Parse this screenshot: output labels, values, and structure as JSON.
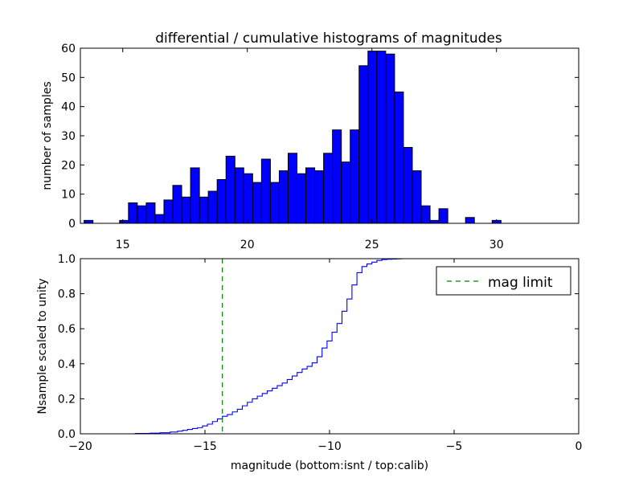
{
  "chart_data": [
    {
      "type": "bar",
      "title": "differential / cumulative histograms of magnitudes",
      "ylabel": "number of samples",
      "xlim": [
        13.3,
        33.3
      ],
      "ylim": [
        0,
        60
      ],
      "xticks": [
        15,
        20,
        25,
        30
      ],
      "yticks": [
        0,
        10,
        20,
        30,
        40,
        50,
        60
      ],
      "bin_width": 0.356,
      "bin_starts": [
        13.45,
        13.806,
        14.162,
        14.518,
        14.874,
        15.23,
        15.586,
        15.942,
        16.298,
        16.654,
        17.01,
        17.366,
        17.722,
        18.078,
        18.434,
        18.79,
        19.146,
        19.502,
        19.858,
        20.214,
        20.57,
        20.926,
        21.282,
        21.638,
        21.994,
        22.35,
        22.706,
        23.062,
        23.418,
        23.774,
        24.13,
        24.486,
        24.842,
        25.198,
        25.554,
        25.91,
        26.266,
        26.622,
        26.978,
        27.334,
        27.69,
        28.046,
        28.402,
        28.758,
        29.114,
        29.47,
        29.826,
        30.182,
        30.538,
        30.894
      ],
      "values": [
        1,
        0,
        0,
        0,
        1,
        7,
        6,
        7,
        3,
        8,
        13,
        9,
        19,
        9,
        11,
        15,
        23,
        19,
        17,
        14,
        22,
        14,
        18,
        24,
        17,
        19,
        18,
        24,
        32,
        21,
        32,
        54,
        59,
        59,
        58,
        45,
        26,
        18,
        6,
        1,
        5,
        0,
        0,
        2,
        0,
        0,
        1,
        0,
        0,
        0
      ]
    },
    {
      "type": "line",
      "step": true,
      "ylabel": "Nsample scaled to unity",
      "xlabel": "magnitude (bottom:isnt / top:calib)",
      "xlim": [
        -20,
        0
      ],
      "ylim": [
        0,
        1.0
      ],
      "xticks": [
        -20,
        -15,
        -10,
        -5,
        0
      ],
      "yticks": [
        0.0,
        0.2,
        0.4,
        0.6,
        0.8,
        1.0
      ],
      "ytick_labels": [
        "0.0",
        "0.2",
        "0.4",
        "0.6",
        "0.8",
        "1.0"
      ],
      "legend": {
        "entries": [
          "mag limit"
        ],
        "placement": "top-right"
      },
      "mag_limit": -14.3,
      "series": [
        {
          "x": [
            -20,
            -17.8,
            -17.2,
            -16.8,
            -16.4,
            -16.1,
            -15.9,
            -15.7,
            -15.5,
            -15.3,
            -15.1,
            -14.9,
            -14.7,
            -14.5,
            -14.3,
            -14.1,
            -13.9,
            -13.7,
            -13.5,
            -13.3,
            -13.1,
            -12.9,
            -12.7,
            -12.5,
            -12.3,
            -12.1,
            -11.9,
            -11.7,
            -11.5,
            -11.3,
            -11.1,
            -10.9,
            -10.7,
            -10.5,
            -10.3,
            -10.1,
            -9.9,
            -9.7,
            -9.5,
            -9.3,
            -9.1,
            -8.9,
            -8.7,
            -8.5,
            -8.3,
            -8.1,
            -7.9,
            -7.7,
            -7.5,
            -7.3,
            -7.1,
            -6.7,
            0
          ],
          "y": [
            0,
            0.002,
            0.004,
            0.006,
            0.01,
            0.015,
            0.02,
            0.025,
            0.03,
            0.035,
            0.045,
            0.055,
            0.07,
            0.085,
            0.1,
            0.11,
            0.125,
            0.14,
            0.16,
            0.18,
            0.2,
            0.215,
            0.23,
            0.245,
            0.26,
            0.275,
            0.29,
            0.31,
            0.33,
            0.35,
            0.37,
            0.385,
            0.405,
            0.44,
            0.49,
            0.53,
            0.58,
            0.63,
            0.7,
            0.77,
            0.85,
            0.92,
            0.955,
            0.97,
            0.98,
            0.99,
            0.995,
            0.997,
            0.998,
            0.999,
            1.0,
            1.0,
            1.0
          ]
        }
      ]
    }
  ]
}
